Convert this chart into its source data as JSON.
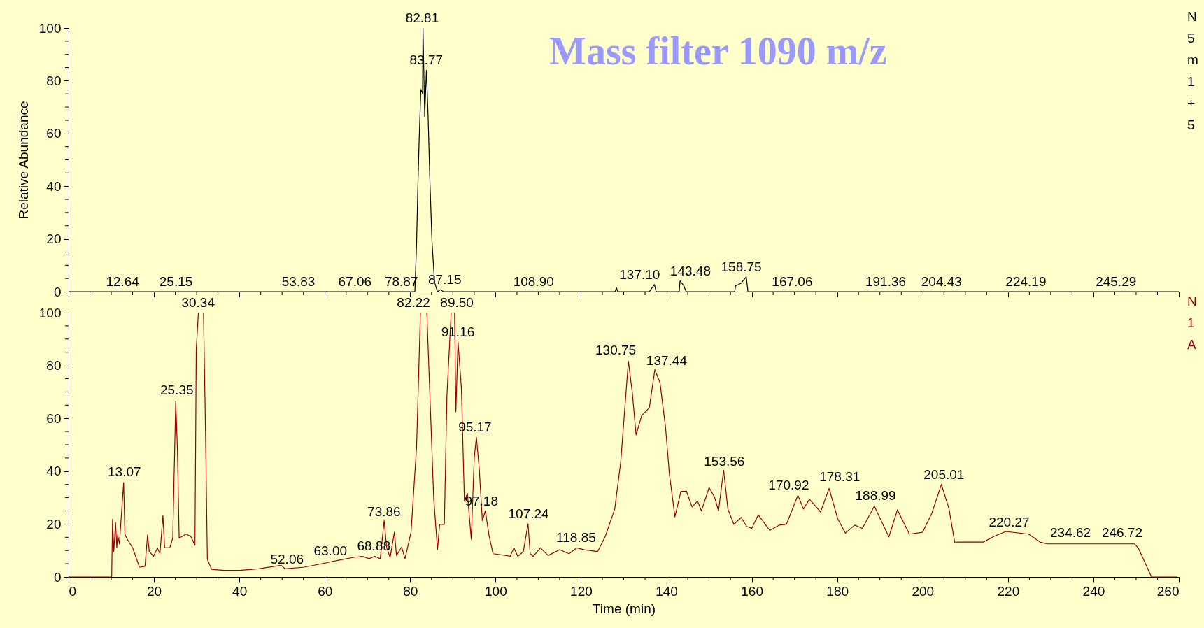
{
  "chart_data": [
    {
      "type": "line",
      "title": "Mass filter 1090 m/z",
      "ylabel": "Relative Abundance",
      "xlim": [
        0,
        260
      ],
      "ylim": [
        0,
        100
      ],
      "tick_labels": "y",
      "xticks": [
        0,
        {
          "value": 5,
          "label": null
        },
        {
          "value": 10,
          "label": null
        },
        {
          "value": 15,
          "label": null
        },
        20,
        {
          "value": 25,
          "label": null
        },
        {
          "value": 30,
          "label": null
        },
        {
          "value": 35,
          "label": null
        },
        40,
        {
          "value": 45,
          "label": null
        },
        {
          "value": 50,
          "label": null
        },
        {
          "value": 55,
          "label": null
        },
        60,
        {
          "value": 65,
          "label": null
        },
        {
          "value": 70,
          "label": null
        },
        {
          "value": 75,
          "label": null
        },
        80,
        {
          "value": 85,
          "label": null
        },
        {
          "value": 90,
          "label": null
        },
        {
          "value": 95,
          "label": null
        },
        100,
        {
          "value": 105,
          "label": null
        },
        {
          "value": 110,
          "label": null
        },
        {
          "value": 115,
          "label": null
        },
        120,
        {
          "value": 125,
          "label": null
        },
        {
          "value": 130,
          "label": null
        },
        {
          "value": 135,
          "label": null
        },
        140,
        {
          "value": 145,
          "label": null
        },
        {
          "value": 150,
          "label": null
        },
        {
          "value": 155,
          "label": null
        },
        160,
        {
          "value": 165,
          "label": null
        },
        {
          "value": 170,
          "label": null
        },
        {
          "value": 175,
          "label": null
        },
        180,
        {
          "value": 185,
          "label": null
        },
        {
          "value": 190,
          "label": null
        },
        {
          "value": 195,
          "label": null
        },
        200,
        {
          "value": 205,
          "label": null
        },
        {
          "value": 210,
          "label": null
        },
        {
          "value": 215,
          "label": null
        },
        220,
        {
          "value": 225,
          "label": null
        },
        {
          "value": 230,
          "label": null
        },
        {
          "value": 235,
          "label": null
        },
        240,
        {
          "value": 245,
          "label": null
        },
        {
          "value": 250,
          "label": null
        },
        {
          "value": 255,
          "label": null
        },
        260
      ],
      "yticks": [
        0,
        {
          "value": 5,
          "label": null
        },
        {
          "value": 10,
          "label": null
        },
        {
          "value": 15,
          "label": null
        },
        20,
        {
          "value": 25,
          "label": null
        },
        {
          "value": 30,
          "label": null
        },
        {
          "value": 35,
          "label": null
        },
        40,
        {
          "value": 45,
          "label": null
        },
        {
          "value": 50,
          "label": null
        },
        {
          "value": 55,
          "label": null
        },
        60,
        {
          "value": 65,
          "label": null
        },
        {
          "value": 70,
          "label": null
        },
        {
          "value": 75,
          "label": null
        },
        80,
        {
          "value": 85,
          "label": null
        },
        {
          "value": 90,
          "label": null
        },
        {
          "value": 95,
          "label": null
        },
        100
      ],
      "series": [
        {
          "color": "#000000",
          "x": [
            0,
            81.1,
            81.5,
            81.8,
            82.1,
            82.5,
            82.9,
            83.0,
            83.4,
            83.8,
            84.2,
            84.6,
            85.1,
            85.5,
            85.7,
            86.1,
            86.4,
            87.1,
            87.8,
            128.0,
            128.3,
            128.6,
            136.0,
            136.3,
            137.2,
            137.6,
            143.0,
            143.2,
            144.1,
            144.6,
            156.0,
            156.2,
            157.5,
            158.7,
            159.1,
            260
          ],
          "values": [
            0,
            0,
            18.4,
            39.8,
            57.5,
            76.7,
            75.2,
            100,
            66.4,
            84,
            66.4,
            42.8,
            19.2,
            8.8,
            3.7,
            1.5,
            0,
            0.7,
            0,
            0,
            1.5,
            0,
            0,
            0.7,
            2.7,
            0,
            0,
            4.1,
            2.2,
            0,
            0,
            2.2,
            3.2,
            5.6,
            0,
            0
          ]
        }
      ],
      "annotations": [
        {
          "text": "12.64",
          "x": 12.64,
          "y": 0
        },
        {
          "text": "25.15",
          "x": 25.15,
          "y": 0
        },
        {
          "text": "53.83",
          "x": 53.83,
          "y": 0
        },
        {
          "text": "67.06",
          "x": 67.06,
          "y": 0
        },
        {
          "text": "78.87",
          "x": 78.87,
          "y": 0
        },
        {
          "text": "82.81",
          "x": 82.81,
          "y": 100
        },
        {
          "text": "83.77",
          "x": 83.77,
          "y": 84
        },
        {
          "text": "87.15",
          "x": 87.15,
          "y": 0.7
        },
        {
          "text": "108.90",
          "x": 108.9,
          "y": 0
        },
        {
          "text": "137.10",
          "x": 137.1,
          "y": 2.7
        },
        {
          "text": "143.48",
          "x": 143.48,
          "y": 4.1
        },
        {
          "text": "158.75",
          "x": 158.75,
          "y": 5.6
        },
        {
          "text": "167.06",
          "x": 167.06,
          "y": 0
        },
        {
          "text": "191.36",
          "x": 191.36,
          "y": 0
        },
        {
          "text": "204.43",
          "x": 204.43,
          "y": 0
        },
        {
          "text": "224.19",
          "x": 224.19,
          "y": 0
        },
        {
          "text": "245.29",
          "x": 245.29,
          "y": 0
        },
        "N",
        "5",
        "m",
        "1",
        "+",
        "5"
      ]
    },
    {
      "type": "line",
      "xlabel": "Time (min)",
      "xlim": [
        0,
        260
      ],
      "ylim": [
        0,
        100
      ],
      "xticks": [
        0,
        {
          "value": 5,
          "label": null
        },
        {
          "value": 10,
          "label": null
        },
        {
          "value": 15,
          "label": null
        },
        20,
        {
          "value": 25,
          "label": null
        },
        {
          "value": 30,
          "label": null
        },
        {
          "value": 35,
          "label": null
        },
        40,
        {
          "value": 45,
          "label": null
        },
        {
          "value": 50,
          "label": null
        },
        {
          "value": 55,
          "label": null
        },
        60,
        {
          "value": 65,
          "label": null
        },
        {
          "value": 70,
          "label": null
        },
        {
          "value": 75,
          "label": null
        },
        80,
        {
          "value": 85,
          "label": null
        },
        {
          "value": 90,
          "label": null
        },
        {
          "value": 95,
          "label": null
        },
        100,
        {
          "value": 105,
          "label": null
        },
        {
          "value": 110,
          "label": null
        },
        {
          "value": 115,
          "label": null
        },
        120,
        {
          "value": 125,
          "label": null
        },
        {
          "value": 130,
          "label": null
        },
        {
          "value": 135,
          "label": null
        },
        140,
        {
          "value": 145,
          "label": null
        },
        {
          "value": 150,
          "label": null
        },
        {
          "value": 155,
          "label": null
        },
        160,
        {
          "value": 165,
          "label": null
        },
        {
          "value": 170,
          "label": null
        },
        {
          "value": 175,
          "label": null
        },
        180,
        {
          "value": 185,
          "label": null
        },
        {
          "value": 190,
          "label": null
        },
        {
          "value": 195,
          "label": null
        },
        200,
        {
          "value": 205,
          "label": null
        },
        {
          "value": 210,
          "label": null
        },
        {
          "value": 215,
          "label": null
        },
        220,
        {
          "value": 225,
          "label": null
        },
        {
          "value": 230,
          "label": null
        },
        {
          "value": 235,
          "label": null
        },
        240,
        {
          "value": 245,
          "label": null
        },
        {
          "value": 250,
          "label": null
        },
        {
          "value": 255,
          "label": null
        },
        260
      ],
      "yticks": [
        0,
        {
          "value": 5,
          "label": null
        },
        {
          "value": 10,
          "label": null
        },
        {
          "value": 15,
          "label": null
        },
        20,
        {
          "value": 25,
          "label": null
        },
        {
          "value": 30,
          "label": null
        },
        {
          "value": 35,
          "label": null
        },
        40,
        {
          "value": 45,
          "label": null
        },
        {
          "value": 50,
          "label": null
        },
        {
          "value": 55,
          "label": null
        },
        60,
        {
          "value": 65,
          "label": null
        },
        {
          "value": 70,
          "label": null
        },
        {
          "value": 75,
          "label": null
        },
        80,
        {
          "value": 85,
          "label": null
        },
        {
          "value": 90,
          "label": null
        },
        {
          "value": 95,
          "label": null
        },
        100
      ],
      "series": [
        {
          "color": "#990000",
          "x": [
            0,
            10.1,
            10.3,
            10.6,
            11.0,
            11.3,
            11.5,
            11.9,
            12.9,
            13.2,
            13.75,
            15.0,
            16.6,
            17.9,
            18.5,
            18.9,
            19.9,
            20.8,
            21.4,
            22.1,
            22.5,
            23.7,
            24.4,
            25.1,
            25.5,
            25.9,
            27.5,
            28.6,
            29.6,
            29.9,
            30.4,
            31.6,
            32.1,
            32.5,
            33.5,
            36.4,
            40,
            44.5,
            49.8,
            50.7,
            55.2,
            59.6,
            63.2,
            66.8,
            68.8,
            70.4,
            71.7,
            73.0,
            73.9,
            74.5,
            75.3,
            76.3,
            76.8,
            78.0,
            78.8,
            80.2,
            81.5,
            82.4,
            83.9,
            85.5,
            86.4,
            86.9,
            88.0,
            88.6,
            89.6,
            90.4,
            90.7,
            91.2,
            92.0,
            92.7,
            93.4,
            94.3,
            95.0,
            95.5,
            96.2,
            96.9,
            97.6,
            98.5,
            99.4,
            102.5,
            103.4,
            104.3,
            105.2,
            106.5,
            107.6,
            108.1,
            108.8,
            110.5,
            112.3,
            115,
            117.2,
            119.0,
            120.8,
            123.9,
            125.7,
            127.9,
            129.3,
            131.1,
            132,
            132.9,
            134.2,
            136,
            137.3,
            138.5,
            139.8,
            140.7,
            142,
            143.4,
            144.7,
            146,
            147.3,
            148.2,
            150,
            151.3,
            152.2,
            153.4,
            154.4,
            155.8,
            157.5,
            158.8,
            160,
            161.5,
            164.2,
            166.4,
            168.1,
            170.8,
            172.1,
            173.5,
            176.1,
            178.1,
            180.1,
            181.9,
            184.1,
            185.9,
            188.7,
            192.1,
            194.1,
            196.9,
            200,
            202.2,
            204.4,
            206.2,
            207.5,
            210.6,
            214.2,
            216.8,
            219.5,
            224.8,
            227.5,
            229.2,
            249.6,
            250.5,
            253.6,
            259.5
          ],
          "values": [
            0,
            0,
            21.8,
            9.6,
            20.6,
            11,
            16,
            12.5,
            35.7,
            16,
            14.3,
            11,
            3.7,
            4,
            15.9,
            9.6,
            7.8,
            11,
            8.8,
            23.2,
            11,
            11,
            14.7,
            66.6,
            47.8,
            14.7,
            16.2,
            15.4,
            12,
            86,
            100,
            100,
            52,
            6.6,
            2.9,
            2.5,
            2.5,
            3.1,
            4.4,
            3.1,
            3.7,
            5.1,
            6.3,
            7.4,
            7.8,
            6.9,
            7.8,
            6.9,
            21.3,
            11,
            7.4,
            16.9,
            8.1,
            11.3,
            6.9,
            16.9,
            49.3,
            100,
            100,
            30,
            10.3,
            19.9,
            19.9,
            68.4,
            100,
            100,
            62.5,
            89,
            71.3,
            28.7,
            31.6,
            14.3,
            44.9,
            52.9,
            40.4,
            21.3,
            25,
            15.4,
            8.8,
            8.1,
            7.8,
            11,
            7.8,
            9.6,
            20.1,
            8.8,
            7.8,
            11,
            8.1,
            10.3,
            8.8,
            11,
            10.3,
            9.6,
            15.4,
            25.7,
            43.4,
            81.6,
            70,
            53.7,
            61,
            64,
            78.4,
            73.5,
            56.6,
            39,
            22.8,
            32.4,
            32.4,
            26.5,
            28.7,
            25,
            33.8,
            30.1,
            25,
            40.4,
            25.7,
            19.9,
            22.5,
            19.1,
            18.4,
            23.5,
            17.6,
            19.6,
            19.9,
            30.9,
            25.7,
            29.4,
            24.6,
            33.5,
            22.1,
            16.6,
            19.6,
            18.4,
            26.8,
            15.1,
            25.4,
            16.2,
            16.9,
            24.3,
            35,
            25.7,
            13.2,
            13.2,
            13.2,
            15.4,
            17.2,
            16.2,
            13.2,
            12.5,
            12.5,
            11,
            0,
            0
          ]
        }
      ],
      "annotations": [
        {
          "text": "13.07",
          "x": 13.07,
          "y": 36
        },
        {
          "text": "25.35",
          "x": 25.35,
          "y": 67
        },
        {
          "text": "30.34",
          "x": 30.34,
          "y": 100
        },
        {
          "text": "52.06",
          "x": 52.06,
          "y": 3
        },
        {
          "text": "63.00",
          "x": 63.0,
          "y": 6.2
        },
        {
          "text": "68.88",
          "x": 68.88,
          "y": 8
        },
        {
          "text": "73.86",
          "x": 73.86,
          "y": 21
        },
        {
          "text": "82.22",
          "x": 82.22,
          "y": 100
        },
        {
          "text": "89.50",
          "x": 89.5,
          "y": 100
        },
        {
          "text": "91.16",
          "x": 91.16,
          "y": 89
        },
        {
          "text": "95.17",
          "x": 95.17,
          "y": 53
        },
        {
          "text": "97.18",
          "x": 97.18,
          "y": 25
        },
        {
          "text": "107.24",
          "x": 107.24,
          "y": 20
        },
        {
          "text": "118.85",
          "x": 118.85,
          "y": 11
        },
        {
          "text": "130.75",
          "x": 130.75,
          "y": 82
        },
        {
          "text": "137.44",
          "x": 137.44,
          "y": 78
        },
        {
          "text": "153.56",
          "x": 153.56,
          "y": 40
        },
        {
          "text": "170.92",
          "x": 170.92,
          "y": 31
        },
        {
          "text": "178.31",
          "x": 178.31,
          "y": 34
        },
        {
          "text": "188.99",
          "x": 188.99,
          "y": 27
        },
        {
          "text": "205.01",
          "x": 205.01,
          "y": 35
        },
        {
          "text": "220.27",
          "x": 220.27,
          "y": 17
        },
        {
          "text": "234.62",
          "x": 234.62,
          "y": 13
        },
        {
          "text": "246.72",
          "x": 246.72,
          "y": 13
        },
        "N",
        "1",
        "A"
      ]
    }
  ]
}
